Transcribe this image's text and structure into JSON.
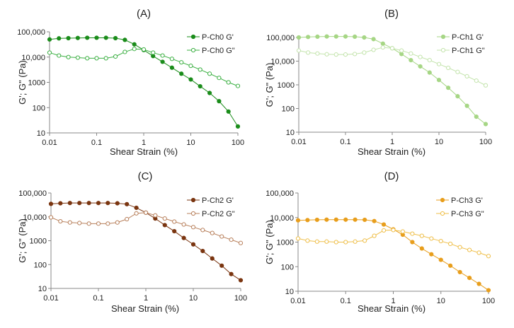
{
  "chart_data": [
    {
      "type": "line",
      "title": "(A)",
      "xlabel": "Shear Strain (%)",
      "ylabel": "G'; G\" (Pa)",
      "xscale": "log",
      "yscale": "log",
      "xlim": [
        0.01,
        100
      ],
      "ylim": [
        10,
        100000
      ],
      "xticks": [
        "0.01",
        "0.1",
        "1",
        "10",
        "100"
      ],
      "yticks": [
        "10",
        "100",
        "1000",
        "10,000",
        "100,000"
      ],
      "legend": "top-right",
      "x": [
        0.01,
        0.0158,
        0.0251,
        0.0398,
        0.0631,
        0.1,
        0.158,
        0.251,
        0.398,
        0.631,
        1,
        1.58,
        2.51,
        3.98,
        6.31,
        10,
        15.8,
        25.1,
        39.8,
        63.1,
        100
      ],
      "series": [
        {
          "name": "P-Ch0 G'",
          "marker": "filled",
          "color": "#1a8c1a",
          "values": [
            50000,
            55000,
            56000,
            57000,
            58000,
            58000,
            58000,
            56000,
            48000,
            32000,
            19000,
            11000,
            6500,
            3800,
            2200,
            1300,
            700,
            380,
            180,
            70,
            18
          ]
        },
        {
          "name": "P-Ch0 G\"",
          "marker": "open",
          "color": "#3cb043",
          "values": [
            15000,
            11500,
            10000,
            9500,
            9000,
            9000,
            9000,
            10500,
            16000,
            21000,
            20000,
            15000,
            11500,
            8500,
            6200,
            4500,
            3200,
            2200,
            1500,
            1000,
            720
          ]
        }
      ]
    },
    {
      "type": "line",
      "title": "(B)",
      "xlabel": "Shear Strain (%)",
      "ylabel": "G'; G\" (Pa)",
      "xscale": "log",
      "yscale": "log",
      "xlim": [
        0.01,
        100
      ],
      "ylim": [
        10,
        100000
      ],
      "xticks": [
        "0.01",
        "0.1",
        "1",
        "10",
        "100"
      ],
      "yticks": [
        "10",
        "100",
        "1000",
        "10,000",
        "100,000"
      ],
      "legend": "top-right",
      "x": [
        0.01,
        0.0158,
        0.0251,
        0.0398,
        0.0631,
        0.1,
        0.158,
        0.251,
        0.398,
        0.631,
        1,
        1.58,
        2.51,
        3.98,
        6.31,
        10,
        15.8,
        25.1,
        39.8,
        63.1,
        100
      ],
      "series": [
        {
          "name": "P-Ch1 G'",
          "marker": "filled",
          "color": "#a6d685",
          "values": [
            100000,
            105000,
            108000,
            110000,
            110000,
            110000,
            108000,
            100000,
            85000,
            55000,
            35000,
            20000,
            11000,
            6000,
            3300,
            1600,
            750,
            330,
            130,
            45,
            22
          ]
        },
        {
          "name": "P-Ch1 G\"",
          "marker": "open",
          "color": "#c4e4ad",
          "values": [
            28000,
            23000,
            21000,
            19500,
            19000,
            19000,
            20000,
            23000,
            30000,
            38000,
            35000,
            28000,
            21000,
            15000,
            11000,
            7500,
            5200,
            3500,
            2300,
            1500,
            950
          ]
        }
      ]
    },
    {
      "type": "line",
      "title": "(C)",
      "xlabel": "Shear Strain (%)",
      "ylabel": "G'; G\" (Pa)",
      "xscale": "log",
      "yscale": "log",
      "xlim": [
        0.01,
        100
      ],
      "ylim": [
        10,
        100000
      ],
      "xticks": [
        "0.01",
        "0.1",
        "1",
        "10",
        "100"
      ],
      "yticks": [
        "10",
        "100",
        "1000",
        "10,000",
        "100,000"
      ],
      "legend": "top-right",
      "x": [
        0.01,
        0.0158,
        0.0251,
        0.0398,
        0.0631,
        0.1,
        0.158,
        0.251,
        0.398,
        0.631,
        1,
        1.58,
        2.51,
        3.98,
        6.31,
        10,
        15.8,
        25.1,
        39.8,
        63.1,
        100
      ],
      "series": [
        {
          "name": "P-Ch2 G'",
          "marker": "filled",
          "color": "#7a3510",
          "values": [
            35000,
            37000,
            38000,
            38000,
            38000,
            38000,
            38000,
            37000,
            34000,
            24000,
            15000,
            8500,
            4500,
            2500,
            1300,
            700,
            370,
            180,
            90,
            40,
            22
          ]
        },
        {
          "name": "P-Ch2 G\"",
          "marker": "open",
          "color": "#b8805c",
          "values": [
            9500,
            6500,
            5800,
            5500,
            5200,
            5200,
            5200,
            5800,
            8000,
            14000,
            15000,
            11500,
            8500,
            6300,
            4800,
            3700,
            2800,
            2100,
            1500,
            1100,
            800
          ]
        }
      ]
    },
    {
      "type": "line",
      "title": "(D)",
      "xlabel": "Shear Strain (%)",
      "ylabel": "G'; G\" (Pa)",
      "xscale": "log",
      "yscale": "log",
      "xlim": [
        0.01,
        100
      ],
      "ylim": [
        10,
        100000
      ],
      "xticks": [
        "0.01",
        "0.1",
        "1",
        "10",
        "100"
      ],
      "yticks": [
        "10",
        "100",
        "1000",
        "10,000",
        "100,000"
      ],
      "legend": "top-right",
      "x": [
        0.01,
        0.0158,
        0.0251,
        0.0398,
        0.0631,
        0.1,
        0.158,
        0.251,
        0.398,
        0.631,
        1,
        1.58,
        2.51,
        3.98,
        6.31,
        10,
        15.8,
        25.1,
        39.8,
        63.1,
        100
      ],
      "series": [
        {
          "name": "P-Ch3 G'",
          "marker": "filled",
          "color": "#e89e1c",
          "values": [
            7700,
            7900,
            8100,
            8200,
            8200,
            8200,
            8200,
            8100,
            7200,
            5200,
            3300,
            2000,
            1000,
            550,
            320,
            190,
            110,
            60,
            35,
            20,
            11
          ]
        },
        {
          "name": "P-Ch3 G\"",
          "marker": "open",
          "color": "#efbf4a",
          "values": [
            1400,
            1150,
            1050,
            1050,
            1000,
            1000,
            1050,
            1150,
            1800,
            3000,
            3100,
            2700,
            2200,
            1800,
            1400,
            1100,
            850,
            620,
            480,
            370,
            270
          ]
        }
      ]
    }
  ]
}
